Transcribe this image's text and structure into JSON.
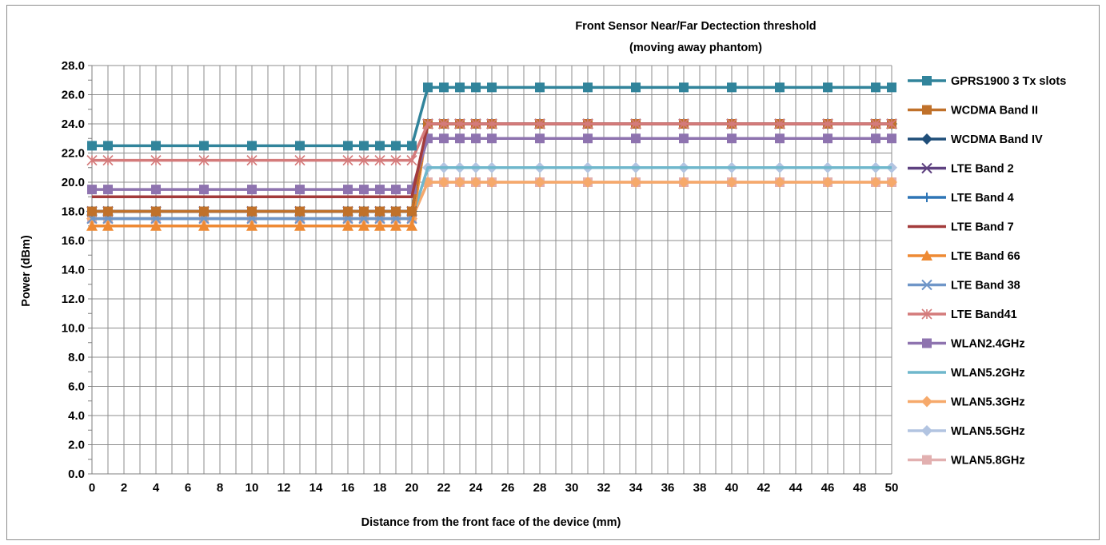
{
  "chart_data": {
    "type": "line",
    "title_lines": [
      "Front Sensor Near/Far Dectection threshold",
      "(moving away phantom)"
    ],
    "xlabel": "Distance from the front face of the device (mm)",
    "ylabel": "Power (dBm)",
    "ylim": [
      0,
      28
    ],
    "xlim": [
      0,
      50
    ],
    "x_tick_labels": [
      "0",
      "2",
      "4",
      "6",
      "8",
      "10",
      "12",
      "14",
      "16",
      "18",
      "20",
      "22",
      "24",
      "26",
      "28",
      "30",
      "32",
      "34",
      "36",
      "38",
      "40",
      "42",
      "44",
      "46",
      "48",
      "50"
    ],
    "y_tick_labels": [
      "0.0",
      "2.0",
      "4.0",
      "6.0",
      "8.0",
      "10.0",
      "12.0",
      "14.0",
      "16.0",
      "18.0",
      "20.0",
      "22.0",
      "24.0",
      "26.0",
      "28.0"
    ],
    "grid": true,
    "legend_position": "right",
    "x": [
      0,
      1,
      4,
      7,
      10,
      13,
      16,
      17,
      18,
      19,
      20,
      21,
      22,
      23,
      24,
      25,
      28,
      31,
      34,
      37,
      40,
      43,
      46,
      49,
      50
    ],
    "series": [
      {
        "name": "GPRS1900 3 Tx slots",
        "color": "#31849B",
        "marker": "square",
        "near": 22.5,
        "far": 26.5
      },
      {
        "name": "WCDMA Band II",
        "color": "#C0712A",
        "marker": "square",
        "near": 18.0,
        "far": 24.0
      },
      {
        "name": "WCDMA Band IV",
        "color": "#1F4E79",
        "marker": "diamond",
        "near": 18.0,
        "far": 24.0
      },
      {
        "name": "LTE Band 2",
        "color": "#5E4180",
        "marker": "x",
        "near": 18.0,
        "far": 24.0
      },
      {
        "name": "LTE Band 4",
        "color": "#2E75B6",
        "marker": "plus",
        "near": 18.0,
        "far": 24.0
      },
      {
        "name": "LTE Band 7",
        "color": "#A33B3B",
        "marker": "none",
        "near": 19.0,
        "far": 24.0
      },
      {
        "name": "LTE Band 66",
        "color": "#EE8A34",
        "marker": "triangle",
        "near": 17.0,
        "far": 24.0
      },
      {
        "name": "LTE Band 38",
        "color": "#6F96C8",
        "marker": "x",
        "near": 17.5,
        "far": 24.0
      },
      {
        "name": "LTE Band41",
        "color": "#D47B7B",
        "marker": "star",
        "near": 21.5,
        "far": 24.0
      },
      {
        "name": "WLAN2.4GHz",
        "color": "#8E73AF",
        "marker": "square",
        "near": 19.5,
        "far": 23.0
      },
      {
        "name": "WLAN5.2GHz",
        "color": "#6FB7CC",
        "marker": "none",
        "near": 17.5,
        "far": 21.0
      },
      {
        "name": "WLAN5.3GHz",
        "color": "#F6A96B",
        "marker": "diamond",
        "near": 17.5,
        "far": 20.0
      },
      {
        "name": "WLAN5.5GHz",
        "color": "#B2C4E1",
        "marker": "diamond",
        "near": 17.5,
        "far": 21.0
      },
      {
        "name": "WLAN5.8GHz",
        "color": "#E2B0B0",
        "marker": "square",
        "near": 17.5,
        "far": 20.0
      }
    ]
  }
}
